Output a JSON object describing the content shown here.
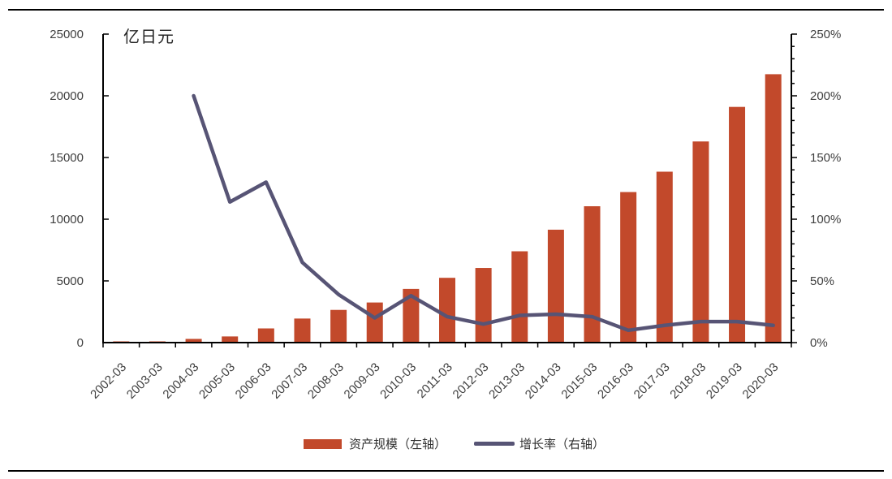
{
  "figure": {
    "unit_label": "亿日元",
    "legend": [
      {
        "label": "资产规模（左轴）",
        "marker": "bar-swatch",
        "color": "#C2492B"
      },
      {
        "label": "增长率（右轴）",
        "marker": "line-swatch",
        "color": "#575475"
      }
    ]
  },
  "chart_data": {
    "type": "bar",
    "subtype": "bar+line dual-axis combo",
    "title": "",
    "xlabel": "",
    "ylabel_left": "亿日元",
    "ylabel_right": "%",
    "grid": false,
    "legend_position": "bottom",
    "categories": [
      "2002-03",
      "2003-03",
      "2004-03",
      "2005-03",
      "2006-03",
      "2007-03",
      "2008-03",
      "2009-03",
      "2010-03",
      "2011-03",
      "2012-03",
      "2013-03",
      "2014-03",
      "2015-03",
      "2016-03",
      "2017-03",
      "2018-03",
      "2019-03",
      "2020-03"
    ],
    "series": [
      {
        "name": "资产规模（左轴）",
        "type": "bar",
        "axis": "left",
        "color": "#C2492B",
        "values": [
          100,
          100,
          300,
          500,
          1150,
          1950,
          2650,
          3250,
          4350,
          5250,
          6050,
          7400,
          9150,
          11050,
          12200,
          13850,
          16300,
          19100,
          21750
        ]
      },
      {
        "name": "增长率（右轴）",
        "type": "line",
        "axis": "right",
        "color": "#575475",
        "values_percent": [
          null,
          null,
          200,
          114,
          130,
          65,
          39,
          20,
          38,
          21,
          15,
          22,
          23,
          21,
          10,
          14,
          17,
          17,
          14
        ]
      }
    ],
    "left_axis": {
      "min": 0,
      "max": 25000,
      "step": 5000,
      "tick_labels": [
        "0",
        "5000",
        "10000",
        "15000",
        "20000",
        "25000"
      ]
    },
    "right_axis": {
      "min": 0,
      "max": 250,
      "step": 50,
      "minor_step": 10,
      "tick_labels": [
        "0%",
        "50%",
        "100%",
        "150%",
        "200%",
        "250%"
      ]
    },
    "axis_color": "#000000",
    "tick_label_color": "#3F3F3F"
  }
}
